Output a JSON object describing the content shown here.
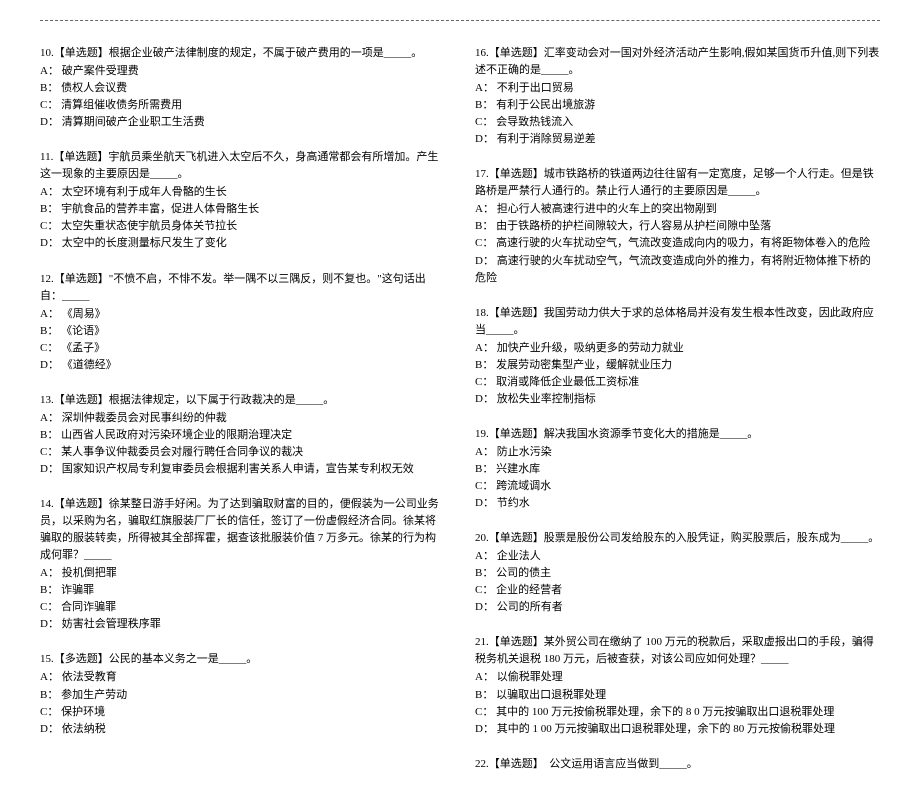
{
  "font_size_pt": 11,
  "line_height": 1.55,
  "text_color": "#000000",
  "background_color": "#ffffff",
  "rule_color": "#666666",
  "left": {
    "q10": {
      "stem": "10.【单选题】根据企业破产法律制度的规定，不属于破产费用的一项是_____。",
      "a": "A：  破产案件受理费",
      "b": "B：  债权人会议费",
      "c": "C：  清算组催收债务所需费用",
      "d": "D：  清算期间破产企业职工生活费"
    },
    "q11": {
      "stem": "11.【单选题】宇航员乘坐航天飞机进入太空后不久，身高通常都会有所增加。产生这一现象的主要原因是_____。",
      "a": "A：  太空环境有利于成年人骨骼的生长",
      "b": "B：  宇航食品的营养丰富，促进人体骨骼生长",
      "c": "C：  太空失重状态使宇航员身体关节拉长",
      "d": "D：  太空中的长度测量标尺发生了变化"
    },
    "q12": {
      "stem": "12.【单选题】\"不愤不启，不悱不发。举一隅不以三隅反，则不复也。\"这句话出自：_____",
      "a": "A：  《周易》",
      "b": "B：  《论语》",
      "c": "C：  《孟子》",
      "d": "D：  《道德经》"
    },
    "q13": {
      "stem": "13.【单选题】根据法律规定，以下属于行政裁决的是_____。",
      "a": "A：  深圳仲裁委员会对民事纠纷的仲裁",
      "b": "B：  山西省人民政府对污染环境企业的限期治理决定",
      "c": "C：  某人事争议仲裁委员会对履行聘任合同争议的裁决",
      "d": "D：  国家知识产权局专利复审委员会根据利害关系人申请，宣告某专利权无效"
    },
    "q14": {
      "stem": "14.【单选题】徐某整日游手好闲。为了达到骗取财富的目的，便假装为一公司业务员，以采购为名，骗取红旗服装厂厂长的信任，签订了一份虚假经济合同。徐某将骗取的服装转卖，所得被其全部挥霍，据查该批服装价值 7 万多元。徐某的行为构成何罪？_____",
      "a": "A：  投机倒把罪",
      "b": "B：  诈骗罪",
      "c": "C：  合同诈骗罪",
      "d": "D：  妨害社会管理秩序罪"
    },
    "q15": {
      "stem": "15.【多选题】公民的基本义务之一是_____。",
      "a": "A：  依法受教育",
      "b": "B：  参加生产劳动",
      "c": "C：  保护环境",
      "d": "D：  依法纳税"
    }
  },
  "right": {
    "q16": {
      "stem": "16.【单选题】汇率变动会对一国对外经济活动产生影响,假如某国货币升值,则下列表述不正确的是_____。",
      "a": "A：  不利于出口贸易",
      "b": "B：  有利于公民出境旅游",
      "c": "C：  会导致热钱流入",
      "d": "D：  有利于消除贸易逆差"
    },
    "q17": {
      "stem": "17.【单选题】城市铁路桥的铁道两边往往留有一定宽度，足够一个人行走。但是铁路桥是严禁行人通行的。禁止行人通行的主要原因是_____。",
      "a": "A：  担心行人被高速行进中的火车上的突出物剐到",
      "b": "B：  由于铁路桥的护栏间隙较大，行人容易从护栏间隙中坠落",
      "c": "C：  高速行驶的火车扰动空气，气流改变造成向内的吸力，有将距物体卷入的危险",
      "d": "D：  高速行驶的火车扰动空气，气流改变造成向外的推力，有将附近物体推下桥的危险"
    },
    "q18": {
      "stem": "18.【单选题】我国劳动力供大于求的总体格局并没有发生根本性改变，因此政府应当_____。",
      "a": "A：  加快产业升级，吸纳更多的劳动力就业",
      "b": "B：  发展劳动密集型产业，缓解就业压力",
      "c": "C：  取消或降低企业最低工资标准",
      "d": "D：  放松失业率控制指标"
    },
    "q19": {
      "stem": "19.【单选题】解决我国水资源季节变化大的措施是_____。",
      "a": "A：  防止水污染",
      "b": "B：  兴建水库",
      "c": "C：  跨流域调水",
      "d": "D：  节约水"
    },
    "q20": {
      "stem": "20.【单选题】股票是股份公司发给股东的入股凭证，购买股票后，股东成为_____。",
      "a": "A：  企业法人",
      "b": "B：  公司的债主",
      "c": "C：  企业的经营者",
      "d": "D：  公司的所有者"
    },
    "q21": {
      "stem": "21.【单选题】某外贸公司在缴纳了 100 万元的税款后，采取虚报出口的手段，骗得税务机关退税 180 万元，后被查获，对该公司应如何处理？_____",
      "a": "A：  以偷税罪处理",
      "b": "B：  以骗取出口退税罪处理",
      "c": "C：  其中的 100 万元按偷税罪处理，余下的 8 0 万元按骗取出口退税罪处理",
      "d": "D：  其中的 1 00 万元按骗取出口退税罪处理，余下的 80 万元按偷税罪处理"
    },
    "q22": {
      "stem": "22.【单选题】　公文运用语言应当做到_____。"
    }
  }
}
